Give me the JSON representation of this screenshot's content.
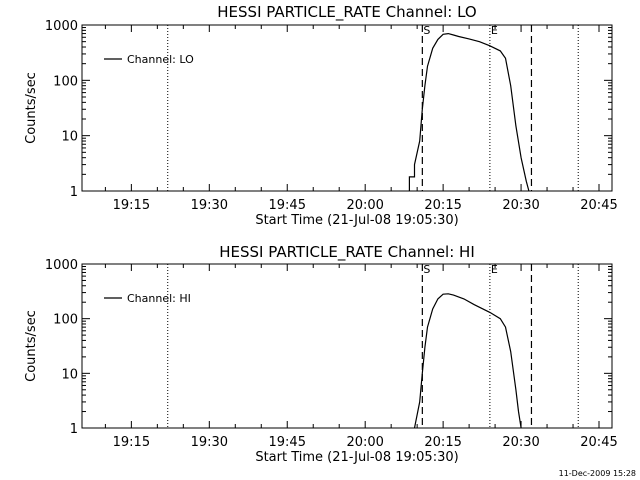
{
  "footer": {
    "timestamp": "11-Dec-2009 15:28"
  },
  "chart_data": [
    {
      "type": "line",
      "title": "HESSI PARTICLE_RATE Channel: LO",
      "xlabel": "Start Time (21-Jul-08 19:05:30)",
      "ylabel": "Counts/sec",
      "xlim": [
        "19:05:30",
        "20:47:30"
      ],
      "ylim": [
        1,
        1000
      ],
      "yscale": "log",
      "xticks": [
        "19:15",
        "19:30",
        "19:45",
        "20:00",
        "20:15",
        "20:30",
        "20:45"
      ],
      "yticks": [
        "1",
        "10",
        "100",
        "1000"
      ],
      "legend": {
        "position": "top-left",
        "entries": [
          "Channel: LO"
        ]
      },
      "annotations": {
        "start_label": "S",
        "end_label": "E"
      },
      "vlines": {
        "dashed": [
          "20:11:00",
          "20:32:00"
        ],
        "dotted": [
          "19:22:00",
          "20:24:00",
          "20:41:00"
        ]
      },
      "series": [
        {
          "name": "Channel: LO",
          "points": [
            [
              "20:08:30",
              1
            ],
            [
              "20:08:30",
              1.8
            ],
            [
              "20:09:30",
              1.8
            ],
            [
              "20:09:30",
              3
            ],
            [
              "20:10:30",
              8
            ],
            [
              "20:11:00",
              30
            ],
            [
              "20:11:30",
              80
            ],
            [
              "20:12:00",
              180
            ],
            [
              "20:13:00",
              380
            ],
            [
              "20:14:00",
              550
            ],
            [
              "20:15:00",
              680
            ],
            [
              "20:16:00",
              700
            ],
            [
              "20:17:00",
              660
            ],
            [
              "20:18:00",
              620
            ],
            [
              "20:20:00",
              560
            ],
            [
              "20:22:00",
              500
            ],
            [
              "20:24:00",
              420
            ],
            [
              "20:26:00",
              340
            ],
            [
              "20:27:00",
              250
            ],
            [
              "20:28:00",
              80
            ],
            [
              "20:29:00",
              15
            ],
            [
              "20:30:00",
              4
            ],
            [
              "20:31:00",
              1.5
            ],
            [
              "20:31:30",
              1
            ]
          ]
        }
      ]
    },
    {
      "type": "line",
      "title": "HESSI PARTICLE_RATE Channel: HI",
      "xlabel": "Start Time (21-Jul-08 19:05:30)",
      "ylabel": "Counts/sec",
      "xlim": [
        "19:05:30",
        "20:47:30"
      ],
      "ylim": [
        1,
        1000
      ],
      "yscale": "log",
      "xticks": [
        "19:15",
        "19:30",
        "19:45",
        "20:00",
        "20:15",
        "20:30",
        "20:45"
      ],
      "yticks": [
        "1",
        "10",
        "100",
        "1000"
      ],
      "legend": {
        "position": "top-left",
        "entries": [
          "Channel: HI"
        ]
      },
      "annotations": {
        "start_label": "S",
        "end_label": "E"
      },
      "vlines": {
        "dashed": [
          "20:11:00",
          "20:32:00"
        ],
        "dotted": [
          "19:22:00",
          "20:24:00",
          "20:41:00"
        ]
      },
      "series": [
        {
          "name": "Channel: HI",
          "points": [
            [
              "20:09:30",
              1
            ],
            [
              "20:10:30",
              3
            ],
            [
              "20:11:00",
              10
            ],
            [
              "20:11:30",
              30
            ],
            [
              "20:12:00",
              70
            ],
            [
              "20:13:00",
              150
            ],
            [
              "20:14:00",
              230
            ],
            [
              "20:15:00",
              280
            ],
            [
              "20:16:00",
              285
            ],
            [
              "20:17:00",
              270
            ],
            [
              "20:19:00",
              230
            ],
            [
              "20:21:00",
              180
            ],
            [
              "20:24:00",
              130
            ],
            [
              "20:26:00",
              100
            ],
            [
              "20:27:00",
              70
            ],
            [
              "20:28:00",
              25
            ],
            [
              "20:29:00",
              5
            ],
            [
              "20:29:30",
              2
            ],
            [
              "20:30:00",
              1
            ]
          ]
        }
      ]
    }
  ]
}
